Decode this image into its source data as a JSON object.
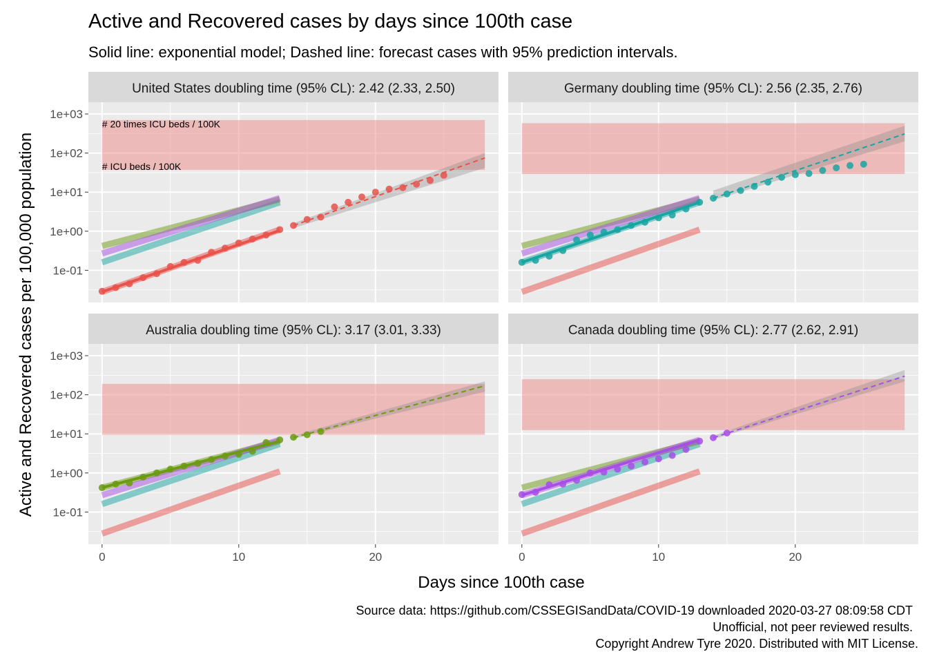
{
  "title": "Active and Recovered cases by days since 100th case",
  "subtitle": "Solid line: exponential model; Dashed line: forecast cases with 95% prediction intervals.",
  "xlabel": "Days since 100th case",
  "ylabel": "Active and Recovered cases per 100,000 population",
  "caption": [
    "Source data: https://github.com/CSSEGISandData/COVID-19 downloaded  2020-03-27 08:09:58 CDT",
    "Unofficial, not peer reviewed results.",
    "Copyright Andrew Tyre 2020. Distributed with MIT License."
  ],
  "colors": {
    "us": "#e8524b",
    "germany": "#17a5a2",
    "australia": "#6b9b12",
    "canada": "#a84ee6",
    "icu_band": "#f08a8a",
    "panel_bg": "#ebebeb",
    "strip_bg": "#d9d9d9",
    "grid": "#ffffff",
    "forecast_band": "#888888"
  },
  "chart_data": {
    "type": "line",
    "scale": {
      "x": "linear",
      "y": "log10"
    },
    "xlim": [
      -1,
      29
    ],
    "ylim": [
      0.015,
      2000
    ],
    "x_ticks": [
      0,
      10,
      20
    ],
    "y_ticks": [
      {
        "value": 0.1,
        "label": "1e-01"
      },
      {
        "value": 1,
        "label": "1e+00"
      },
      {
        "value": 10,
        "label": "1e+01"
      },
      {
        "value": 100,
        "label": "1e+02"
      },
      {
        "value": 1000,
        "label": "1e+03"
      }
    ],
    "annotations": [
      {
        "panel": 0,
        "text": "# 20 times ICU beds / 100K",
        "x": 0,
        "y": 450
      },
      {
        "panel": 0,
        "text": "# ICU beds / 100K",
        "x": 0,
        "y": 37
      }
    ],
    "reference_lines": [
      {
        "series": "us",
        "x0": 0,
        "y0": 0.028,
        "x1": 13,
        "y1": 1.1
      },
      {
        "series": "germany",
        "x0": 0,
        "y0": 0.16,
        "x1": 13,
        "y1": 5.5
      },
      {
        "series": "australia",
        "x0": 0,
        "y0": 0.42,
        "x1": 13,
        "y1": 6.5
      },
      {
        "series": "canada",
        "x0": 0,
        "y0": 0.27,
        "x1": 13,
        "y1": 7.0
      }
    ],
    "panels": [
      {
        "label": "United States doubling time (95% CL): 2.42 (2.33, 2.50)",
        "series": "us",
        "icu_band": [
          37,
          700
        ],
        "points": [
          [
            0,
            0.029
          ],
          [
            1,
            0.036
          ],
          [
            2,
            0.045
          ],
          [
            3,
            0.065
          ],
          [
            4,
            0.082
          ],
          [
            5,
            0.125
          ],
          [
            6,
            0.16
          ],
          [
            7,
            0.18
          ],
          [
            8,
            0.29
          ],
          [
            9,
            0.37
          ],
          [
            10,
            0.5
          ],
          [
            11,
            0.63
          ],
          [
            12,
            0.8
          ],
          [
            13,
            1.1
          ],
          [
            14,
            1.4
          ],
          [
            15,
            2.0
          ],
          [
            16,
            2.3
          ],
          [
            17,
            4.2
          ],
          [
            18,
            5.5
          ],
          [
            19,
            7.5
          ],
          [
            20,
            10
          ],
          [
            21,
            12
          ],
          [
            22,
            13
          ],
          [
            23,
            16
          ],
          [
            24,
            20
          ],
          [
            25,
            27
          ]
        ],
        "fit": {
          "x0": 0,
          "y0": 0.028,
          "x1": 13,
          "y1": 1.05
        },
        "forecast": {
          "x0": 14,
          "y0": 1.4,
          "x1": 28,
          "y1": 75,
          "lower0": 1.2,
          "upper0": 1.6,
          "lower1": 42,
          "upper1": 100
        }
      },
      {
        "label": "Germany doubling time (95% CL): 2.56 (2.35, 2.76)",
        "series": "germany",
        "icu_band": [
          29,
          580
        ],
        "points": [
          [
            0,
            0.16
          ],
          [
            1,
            0.18
          ],
          [
            2,
            0.23
          ],
          [
            3,
            0.32
          ],
          [
            4,
            0.6
          ],
          [
            5,
            0.8
          ],
          [
            6,
            0.95
          ],
          [
            7,
            1.1
          ],
          [
            8,
            1.4
          ],
          [
            9,
            1.7
          ],
          [
            10,
            2.2
          ],
          [
            11,
            2.6
          ],
          [
            12,
            3.7
          ],
          [
            13,
            5.5
          ],
          [
            14,
            7.0
          ],
          [
            15,
            9.0
          ],
          [
            16,
            11
          ],
          [
            17,
            14
          ],
          [
            18,
            18
          ],
          [
            19,
            24
          ],
          [
            20,
            28
          ],
          [
            21,
            30
          ],
          [
            22,
            36
          ],
          [
            23,
            42
          ],
          [
            24,
            48
          ],
          [
            25,
            52
          ]
        ],
        "fit": {
          "x0": 0,
          "y0": 0.16,
          "x1": 13,
          "y1": 5.5
        },
        "forecast": {
          "x0": 14,
          "y0": 7.0,
          "x1": 28,
          "y1": 310,
          "lower0": 6.2,
          "upper0": 11,
          "lower1": 200,
          "upper1": 500
        }
      },
      {
        "label": "Australia doubling time (95% CL): 3.17 (3.01, 3.33)",
        "series": "australia",
        "icu_band": [
          9.5,
          190
        ],
        "points": [
          [
            0,
            0.42
          ],
          [
            1,
            0.52
          ],
          [
            2,
            0.55
          ],
          [
            3,
            0.78
          ],
          [
            4,
            1.0
          ],
          [
            5,
            1.25
          ],
          [
            6,
            1.5
          ],
          [
            7,
            1.75
          ],
          [
            8,
            2.2
          ],
          [
            9,
            2.7
          ],
          [
            10,
            3.0
          ],
          [
            11,
            3.6
          ],
          [
            12,
            6.0
          ],
          [
            13,
            7.0
          ],
          [
            14,
            8.2
          ],
          [
            15,
            9.5
          ],
          [
            16,
            11.5
          ]
        ],
        "fit": {
          "x0": 0,
          "y0": 0.42,
          "x1": 13,
          "y1": 6.5
        },
        "forecast": {
          "x0": 14,
          "y0": 8.0,
          "x1": 28,
          "y1": 170,
          "lower0": 7.5,
          "upper0": 9.0,
          "lower1": 120,
          "upper1": 220
        }
      },
      {
        "label": "Canada doubling time (95% CL): 2.77 (2.62, 2.91)",
        "series": "canada",
        "icu_band": [
          12.5,
          250
        ],
        "points": [
          [
            0,
            0.28
          ],
          [
            1,
            0.32
          ],
          [
            2,
            0.5
          ],
          [
            3,
            0.52
          ],
          [
            4,
            0.65
          ],
          [
            5,
            1.0
          ],
          [
            6,
            1.05
          ],
          [
            7,
            1.25
          ],
          [
            8,
            1.5
          ],
          [
            9,
            1.9
          ],
          [
            10,
            2.3
          ],
          [
            11,
            2.8
          ],
          [
            12,
            4.0
          ],
          [
            13,
            6.5
          ],
          [
            14,
            8.0
          ],
          [
            15,
            10.5
          ]
        ],
        "fit": {
          "x0": 0,
          "y0": 0.27,
          "x1": 13,
          "y1": 7.0
        },
        "forecast": {
          "x0": 14,
          "y0": 8.0,
          "x1": 28,
          "y1": 300,
          "lower0": 7.3,
          "upper0": 9.0,
          "lower1": 220,
          "upper1": 430
        }
      }
    ]
  }
}
